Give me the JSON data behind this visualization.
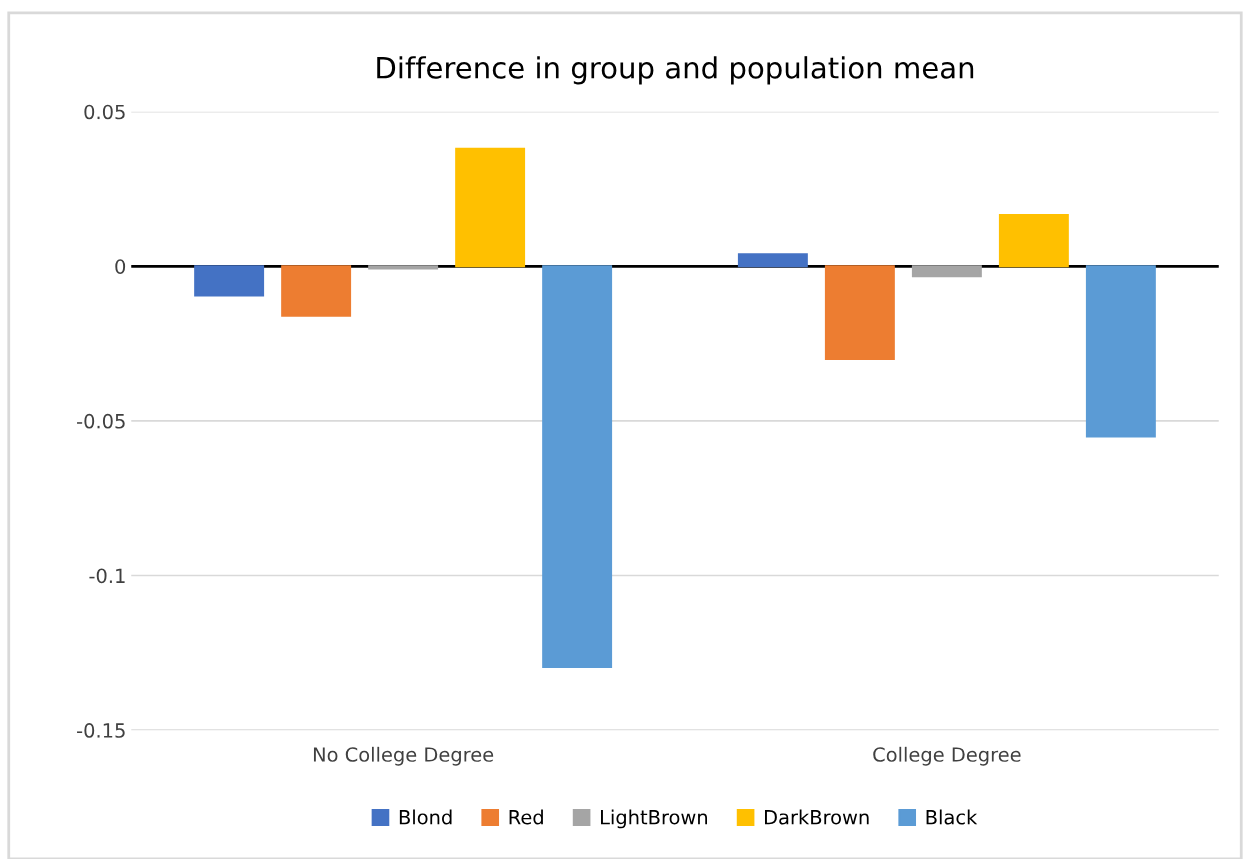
{
  "chart_data": {
    "type": "bar",
    "title": "Difference in group and population mean",
    "categories": [
      "No College Degree",
      "College Degree"
    ],
    "series": [
      {
        "name": "Blond",
        "color": "#4472c4",
        "values": [
          -0.0094,
          0.0039
        ]
      },
      {
        "name": "Red",
        "color": "#ed7d31",
        "values": [
          -0.016,
          -0.03
        ]
      },
      {
        "name": "LightBrown",
        "color": "#a5a5a5",
        "values": [
          -0.0007,
          -0.0032
        ]
      },
      {
        "name": "DarkBrown",
        "color": "#ffc000",
        "values": [
          0.038,
          0.0166
        ]
      },
      {
        "name": "Black",
        "color": "#5b9bd5",
        "values": [
          -0.1296,
          -0.055
        ]
      }
    ],
    "ylim": [
      -0.15,
      0.05
    ],
    "yticks": [
      -0.15,
      -0.1,
      -0.05,
      0,
      0.05
    ],
    "ref_lines": [
      {
        "axis": "y",
        "value": 0,
        "color": "#000000"
      }
    ],
    "grid": "y",
    "legend": "bottom"
  }
}
